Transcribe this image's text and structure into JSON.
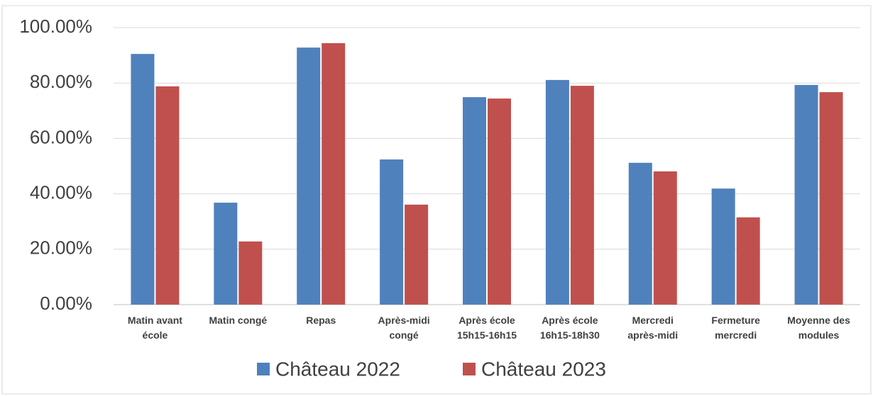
{
  "chart_data": {
    "type": "bar",
    "categories": [
      "Matin avant école",
      "Matin congé",
      "Repas",
      "Après-midi congé",
      "Après école 15h15-16h15",
      "Après école 16h15-18h30",
      "Mercredi après-midi",
      "Fermeture mercredi",
      "Moyenne des modules"
    ],
    "series": [
      {
        "name": "Château 2022",
        "color": "#4f81bd",
        "values": [
          90.5,
          36.8,
          92.8,
          52.4,
          74.9,
          81.1,
          51.2,
          41.9,
          79.3
        ]
      },
      {
        "name": "Château 2023",
        "color": "#c0504d",
        "values": [
          78.8,
          22.8,
          94.4,
          36.1,
          74.4,
          79.0,
          48.1,
          31.5,
          76.7
        ]
      }
    ],
    "ylim": [
      0,
      100
    ],
    "yticks": [
      {
        "value": 0,
        "label": "0.00%"
      },
      {
        "value": 20,
        "label": "20.00%"
      },
      {
        "value": 40,
        "label": "40.00%"
      },
      {
        "value": 60,
        "label": "60.00%"
      },
      {
        "value": 80,
        "label": "80.00%"
      },
      {
        "value": 100,
        "label": "100.00%"
      }
    ],
    "grid": true,
    "legend": "bottom"
  }
}
